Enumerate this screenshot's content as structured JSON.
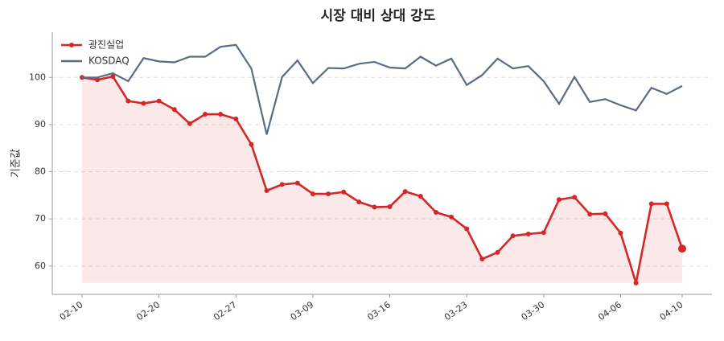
{
  "chart_data": {
    "type": "line",
    "title": "시장 대비 상대 강도",
    "y_label": "기준값",
    "categories": [
      "02-10",
      null,
      null,
      null,
      null,
      "02-20",
      null,
      null,
      null,
      null,
      "02-27",
      null,
      null,
      null,
      null,
      "03-09",
      null,
      null,
      null,
      null,
      "03-16",
      null,
      null,
      null,
      null,
      "03-23",
      null,
      null,
      null,
      null,
      "03-30",
      null,
      null,
      null,
      null,
      "04-06",
      null,
      null,
      null,
      "04-10"
    ],
    "series": [
      {
        "name": "광진실업",
        "color": "#d62728",
        "values": [
          100,
          99.5,
          100.2,
          95,
          94.5,
          95,
          93.2,
          90.2,
          92.2,
          92.2,
          91.2,
          85.8,
          76,
          77.3,
          77.6,
          75.3,
          75.3,
          75.7,
          73.6,
          72.5,
          72.6,
          75.8,
          74.8,
          71.4,
          70.4,
          67.9,
          61.5,
          62.9,
          66.4,
          66.8,
          67.1,
          74.1,
          74.6,
          71,
          71.1,
          67,
          56.4,
          73.2,
          73.2,
          63.7
        ]
      },
      {
        "name": "KOSDAQ",
        "color": "#5a6b82",
        "values": [
          100,
          100,
          100.9,
          99.2,
          104.1,
          103.4,
          103.2,
          104.4,
          104.4,
          106.5,
          106.9,
          101.9,
          87.9,
          100.1,
          103.6,
          98.8,
          102,
          101.9,
          102.9,
          103.3,
          102.1,
          101.9,
          104.4,
          102.5,
          104,
          98.4,
          100.5,
          104,
          101.9,
          102.4,
          99.2,
          94.4,
          100.1,
          94.8,
          95.4,
          94.1,
          93,
          97.8,
          96.5,
          98.2
        ]
      }
    ],
    "ylim": [
      54,
      109.6
    ],
    "yticks": [
      60,
      70,
      80,
      90,
      100
    ],
    "grid": true,
    "legend": "upper left"
  }
}
